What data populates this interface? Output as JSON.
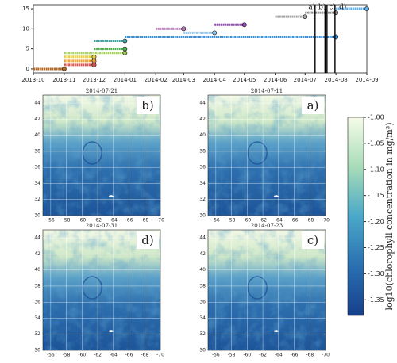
{
  "chart_data": [
    {
      "type": "timeline",
      "xlim": [
        "2013-10",
        "2014-09"
      ],
      "xticks": [
        "2013-10",
        "2013-11",
        "2013-12",
        "2014-01",
        "2014-02",
        "2014-03",
        "2014-04",
        "2014-05",
        "2014-06",
        "2014-07",
        "2014-08",
        "2014-09"
      ],
      "ylim": [
        -1,
        16
      ],
      "yticks": [
        0,
        5,
        10,
        15
      ],
      "series": [
        {
          "color": "#b5651d",
          "x": [
            "2013-10",
            "2013-11"
          ],
          "values": [
            0,
            0
          ]
        },
        {
          "color": "#d9534f",
          "x": [
            "2013-11",
            "2013-12"
          ],
          "values": [
            1,
            1
          ]
        },
        {
          "color": "#f0a030",
          "x": [
            "2013-11",
            "2013-12"
          ],
          "values": [
            2,
            2
          ]
        },
        {
          "color": "#e8d040",
          "x": [
            "2013-11",
            "2013-12"
          ],
          "values": [
            3,
            3
          ]
        },
        {
          "color": "#a8d060",
          "x": [
            "2013-11",
            "2014-01"
          ],
          "values": [
            4,
            4
          ]
        },
        {
          "color": "#50b050",
          "x": [
            "2013-12",
            "2014-01"
          ],
          "values": [
            5,
            5
          ]
        },
        {
          "color": "#40a0a0",
          "x": [
            "2013-12",
            "2014-01"
          ],
          "values": [
            7,
            7
          ]
        },
        {
          "color": "#3a8fd8",
          "x": [
            "2014-01",
            "2014-08"
          ],
          "values": [
            8,
            8
          ]
        },
        {
          "color": "#90c8f0",
          "x": [
            "2014-03",
            "2014-04"
          ],
          "values": [
            9,
            9
          ]
        },
        {
          "color": "#c080c0",
          "x": [
            "2014-02",
            "2014-03"
          ],
          "values": [
            10,
            10
          ]
        },
        {
          "color": "#9040b0",
          "x": [
            "2014-04",
            "2014-05"
          ],
          "values": [
            11,
            11
          ]
        },
        {
          "color": "#a0a0a0",
          "x": [
            "2014-06",
            "2014-07"
          ],
          "values": [
            13,
            13
          ]
        },
        {
          "color": "#909090",
          "x": [
            "2014-07",
            "2014-08"
          ],
          "values": [
            14,
            14
          ]
        },
        {
          "color": "#60b0e8",
          "x": [
            "2014-08",
            "2014-09"
          ],
          "values": [
            15,
            15
          ]
        }
      ],
      "vlines": [
        {
          "label": "a)",
          "x": "2014-07-11"
        },
        {
          "label": "b)",
          "x": "2014-07-21"
        },
        {
          "label": "c)",
          "x": "2014-07-23"
        },
        {
          "label": "d)",
          "x": "2014-07-31"
        }
      ]
    },
    {
      "type": "map",
      "title": "2014-07-11",
      "label": "a)",
      "xlim": [
        -55,
        -70
      ],
      "xticks": [
        -56,
        -58,
        -60,
        -62,
        -64,
        -66,
        -68,
        -70
      ],
      "ylim": [
        30,
        45
      ],
      "yticks": [
        30,
        32,
        34,
        36,
        38,
        40,
        42,
        44
      ],
      "grid": true
    },
    {
      "type": "map",
      "title": "2014-07-21",
      "label": "b)",
      "xlim": [
        -55,
        -70
      ],
      "xticks": [
        -56,
        -58,
        -60,
        -62,
        -64,
        -66,
        -68,
        -70
      ],
      "ylim": [
        30,
        45
      ],
      "yticks": [
        30,
        32,
        34,
        36,
        38,
        40,
        42,
        44
      ],
      "grid": true
    },
    {
      "type": "map",
      "title": "2014-07-23",
      "label": "c)",
      "xlim": [
        -55,
        -70
      ],
      "xticks": [
        -56,
        -58,
        -60,
        -62,
        -64,
        -66,
        -68,
        -70
      ],
      "ylim": [
        30,
        45
      ],
      "yticks": [
        30,
        32,
        34,
        36,
        38,
        40,
        42,
        44
      ],
      "grid": true
    },
    {
      "type": "map",
      "title": "2014-07-31",
      "label": "d)",
      "xlim": [
        -55,
        -70
      ],
      "xticks": [
        -56,
        -58,
        -60,
        -62,
        -64,
        -66,
        -68,
        -70
      ],
      "ylim": [
        30,
        45
      ],
      "yticks": [
        30,
        32,
        34,
        36,
        38,
        40,
        42,
        44
      ],
      "grid": true
    },
    {
      "type": "colorbar",
      "ylabel": "log10(chlorophyll concentration in mg/m³)",
      "ylim": [
        -1.38,
        -1.0
      ],
      "yticks": [
        {
          "value": -1.0,
          "label": "-1.00"
        },
        {
          "value": -1.05,
          "label": "-1.05"
        },
        {
          "value": -1.1,
          "label": "-1.10"
        },
        {
          "value": -1.15,
          "label": "-1.15"
        },
        {
          "value": -1.2,
          "label": "-1.20"
        },
        {
          "value": -1.25,
          "label": "-1.25"
        },
        {
          "value": -1.3,
          "label": "-1.30"
        },
        {
          "value": -1.35,
          "label": "-1.35"
        }
      ]
    }
  ]
}
